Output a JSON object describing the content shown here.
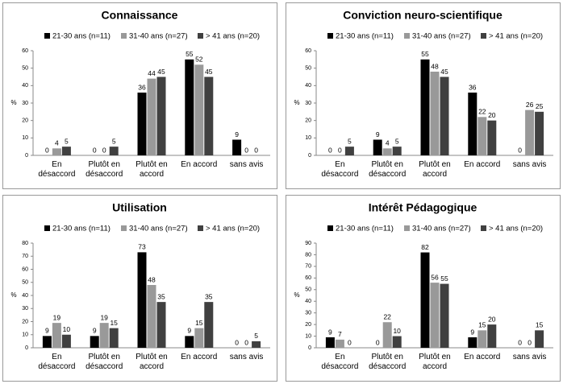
{
  "chart_data": [
    {
      "type": "bar",
      "title": "Connaissance",
      "y_label": "%",
      "categories": [
        "En désaccord",
        "Plutôt en désaccord",
        "Plutôt en accord",
        "En accord",
        "sans avis"
      ],
      "series": [
        {
          "name": "21-30 ans (n=11)",
          "color": "#000000",
          "values": [
            0,
            0,
            36,
            55,
            9
          ]
        },
        {
          "name": "31-40 ans (n=27)",
          "color": "#999999",
          "values": [
            4,
            0,
            44,
            52,
            0
          ]
        },
        {
          "name": "> 41 ans (n=20)",
          "color": "#404040",
          "values": [
            5,
            5,
            45,
            45,
            0
          ]
        }
      ],
      "ylim": [
        0,
        60
      ],
      "yticks": [
        0,
        10,
        20,
        30,
        40,
        50,
        60
      ],
      "grid": false
    },
    {
      "type": "bar",
      "title": "Conviction neuro-scientifique",
      "y_label": "%",
      "categories": [
        "En désaccord",
        "Plutôt en désaccord",
        "Plutôt en accord",
        "En accord",
        "sans avis"
      ],
      "series": [
        {
          "name": "21-30 ans (n=11)",
          "color": "#000000",
          "values": [
            0,
            9,
            55,
            36,
            0
          ]
        },
        {
          "name": "31-40 ans (n=27)",
          "color": "#999999",
          "values": [
            0,
            4,
            48,
            22,
            26
          ]
        },
        {
          "name": "> 41 ans (n=20)",
          "color": "#404040",
          "values": [
            5,
            5,
            45,
            20,
            25
          ]
        }
      ],
      "ylim": [
        0,
        60
      ],
      "yticks": [
        0,
        10,
        20,
        30,
        40,
        50,
        60
      ],
      "grid": false
    },
    {
      "type": "bar",
      "title": "Utilisation",
      "y_label": "%",
      "categories": [
        "En désaccord",
        "Plutôt en désaccord",
        "Plutôt en accord",
        "En accord",
        "sans avis"
      ],
      "series": [
        {
          "name": "21-30 ans (n=11)",
          "color": "#000000",
          "values": [
            9,
            9,
            73,
            9,
            0
          ]
        },
        {
          "name": "31-40 ans (n=27)",
          "color": "#999999",
          "values": [
            19,
            19,
            48,
            15,
            0
          ]
        },
        {
          "name": "> 41 ans (n=20)",
          "color": "#404040",
          "values": [
            10,
            15,
            35,
            35,
            5
          ]
        }
      ],
      "ylim": [
        0,
        80
      ],
      "yticks": [
        0,
        10,
        20,
        30,
        40,
        50,
        60,
        70,
        80
      ],
      "grid": false
    },
    {
      "type": "bar",
      "title": "Intérêt Pédagogique",
      "y_label": "%",
      "categories": [
        "En désaccord",
        "Plutôt en désaccord",
        "Plutôt en accord",
        "En accord",
        "sans avis"
      ],
      "series": [
        {
          "name": "21-30 ans (n=11)",
          "color": "#000000",
          "values": [
            9,
            0,
            82,
            9,
            0
          ]
        },
        {
          "name": "31-40 ans (n=27)",
          "color": "#999999",
          "values": [
            7,
            22,
            56,
            15,
            0
          ]
        },
        {
          "name": "> 41 ans (n=20)",
          "color": "#404040",
          "values": [
            0,
            10,
            55,
            20,
            15
          ]
        }
      ],
      "ylim": [
        0,
        90
      ],
      "yticks": [
        0,
        10,
        20,
        30,
        40,
        50,
        60,
        70,
        80,
        90
      ],
      "grid": false
    }
  ]
}
